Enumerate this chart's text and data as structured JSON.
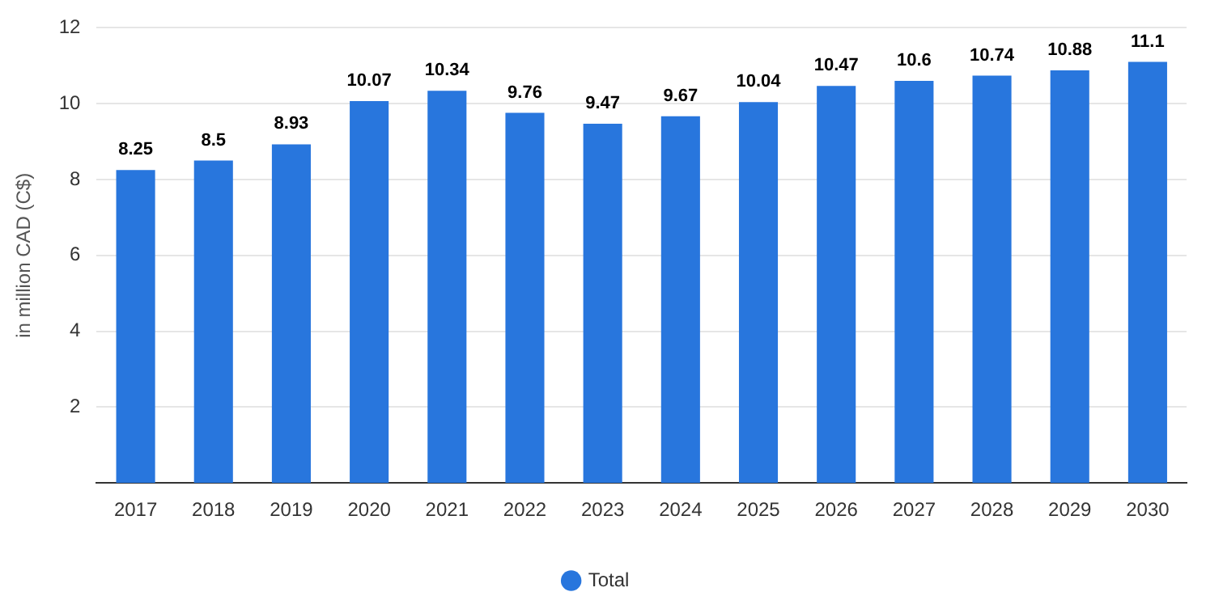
{
  "chart_data": {
    "type": "bar",
    "ylabel": "in million CAD (C$)",
    "categories": [
      "2017",
      "2018",
      "2019",
      "2020",
      "2021",
      "2022",
      "2023",
      "2024",
      "2025",
      "2026",
      "2027",
      "2028",
      "2029",
      "2030"
    ],
    "series": [
      {
        "name": "Total",
        "color": "#2876dd",
        "values": [
          8.25,
          8.5,
          8.93,
          10.07,
          10.34,
          9.76,
          9.47,
          9.67,
          10.04,
          10.47,
          10.6,
          10.74,
          10.88,
          11.1
        ]
      }
    ],
    "ylim": [
      0,
      12
    ],
    "yticks": [
      2,
      4,
      6,
      8,
      10,
      12
    ],
    "grid": "y",
    "legend": "bottom",
    "data_labels": true
  }
}
